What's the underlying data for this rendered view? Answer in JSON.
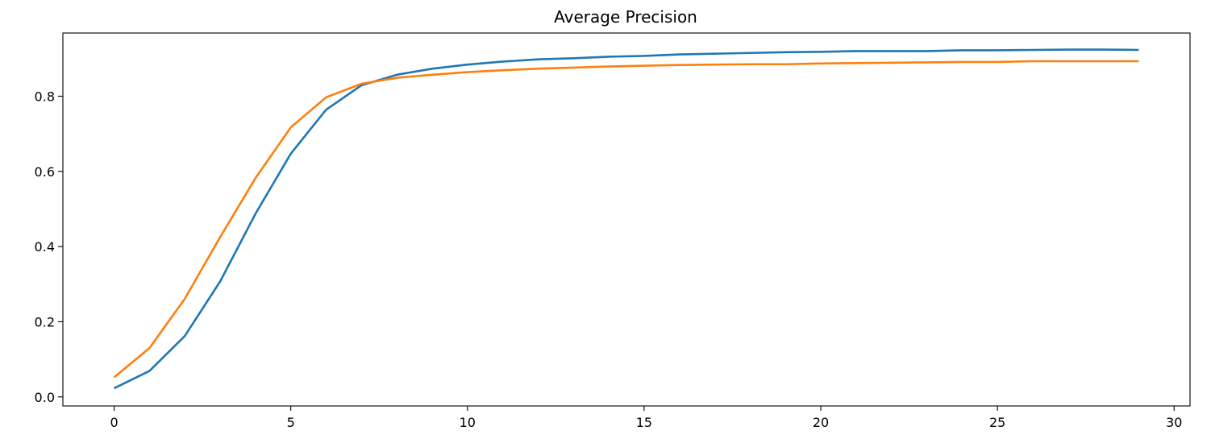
{
  "chart_data": {
    "type": "line",
    "title": "Average Precision",
    "xlabel": "",
    "ylabel": "",
    "xlim": [
      -1.45,
      30.45
    ],
    "ylim": [
      -0.024,
      0.968
    ],
    "xticks": [
      0,
      5,
      10,
      15,
      20,
      25,
      30
    ],
    "xtick_labels": [
      "0",
      "5",
      "10",
      "15",
      "20",
      "25",
      "30"
    ],
    "yticks": [
      0.0,
      0.2,
      0.4,
      0.6,
      0.8
    ],
    "ytick_labels": [
      "0.0",
      "0.2",
      "0.4",
      "0.6",
      "0.8"
    ],
    "grid": false,
    "legend": "none",
    "x": [
      0,
      1,
      2,
      3,
      4,
      5,
      6,
      7,
      8,
      9,
      10,
      11,
      12,
      13,
      14,
      15,
      16,
      17,
      18,
      19,
      20,
      21,
      22,
      23,
      24,
      25,
      26,
      27,
      28,
      29
    ],
    "series": [
      {
        "color": "#1f77b4",
        "values": [
          0.023,
          0.069,
          0.162,
          0.307,
          0.487,
          0.647,
          0.764,
          0.829,
          0.857,
          0.873,
          0.884,
          0.892,
          0.898,
          0.901,
          0.905,
          0.907,
          0.911,
          0.913,
          0.915,
          0.917,
          0.918,
          0.92,
          0.92,
          0.92,
          0.922,
          0.922,
          0.923,
          0.924,
          0.924,
          0.923
        ]
      },
      {
        "color": "#ff7f0e",
        "values": [
          0.052,
          0.13,
          0.261,
          0.425,
          0.582,
          0.717,
          0.797,
          0.833,
          0.849,
          0.857,
          0.864,
          0.869,
          0.873,
          0.876,
          0.879,
          0.881,
          0.883,
          0.884,
          0.885,
          0.885,
          0.887,
          0.888,
          0.889,
          0.89,
          0.891,
          0.891,
          0.893,
          0.893,
          0.893,
          0.893
        ]
      }
    ]
  }
}
